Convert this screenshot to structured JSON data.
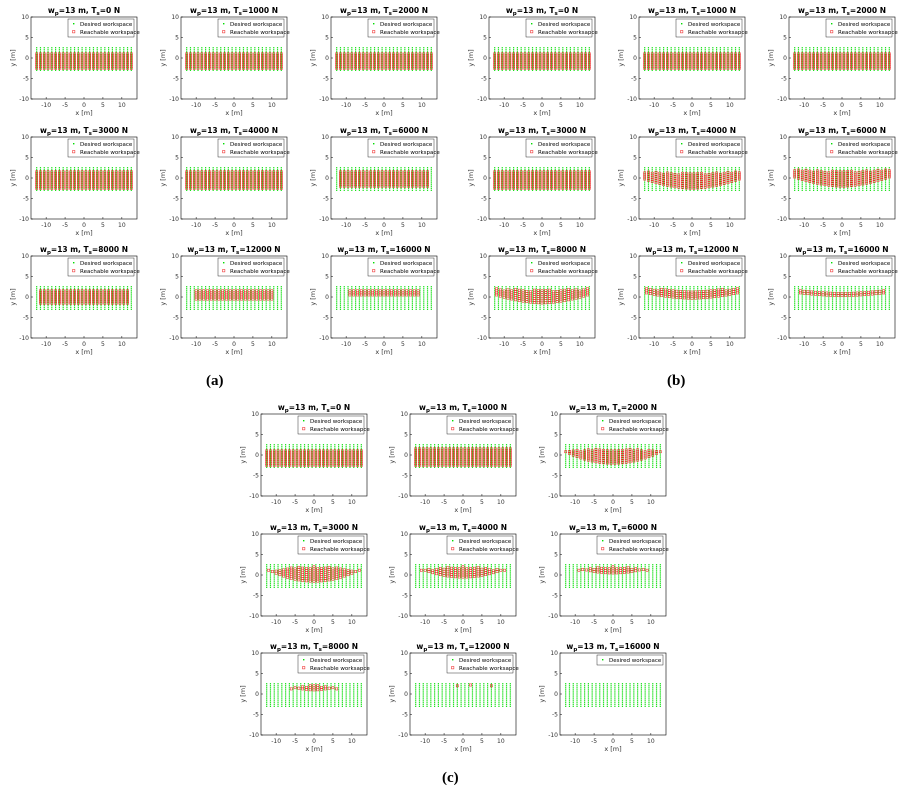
{
  "figure_labels": {
    "a": "(a)",
    "b": "(b)",
    "c": "(c)"
  },
  "legend": {
    "desired": "Desired workspace",
    "reachable": "Reachable workspace",
    "reachable_b": "Reachable worksapce"
  },
  "colors": {
    "desired": "#00dd00",
    "reachable": "#ee1111"
  },
  "axes": {
    "xlabel": "x [m]",
    "ylabel": "y [m]",
    "xlim": [
      -14,
      14
    ],
    "ylim": [
      -10,
      10
    ],
    "xticks": [
      -10,
      -5,
      0,
      5,
      10
    ],
    "yticks": [
      -10,
      -5,
      0,
      5,
      10
    ]
  },
  "chart_data": [
    {
      "type": "scatter",
      "group": "a",
      "title": "w_p=13 m, T_s=0 N",
      "tension": 0,
      "desired": {
        "x": [
          -12.5,
          12.5
        ],
        "y": [
          -3,
          2.5
        ]
      },
      "reachable": {
        "x": [
          -12.5,
          12.5
        ],
        "profile": "flat",
        "ymin": -2.5,
        "ymax": 1
      }
    },
    {
      "type": "scatter",
      "group": "a",
      "title": "w_p=13 m, T_s=1000 N",
      "tension": 1000,
      "desired": {
        "x": [
          -12.5,
          12.5
        ],
        "y": [
          -3,
          2.5
        ]
      },
      "reachable": {
        "x": [
          -12.5,
          12.5
        ],
        "profile": "flat",
        "ymin": -2.5,
        "ymax": 1
      }
    },
    {
      "type": "scatter",
      "group": "a",
      "title": "w_p=13 m, T_s=2000 N",
      "tension": 2000,
      "desired": {
        "x": [
          -12.5,
          12.5
        ],
        "y": [
          -3,
          2.5
        ]
      },
      "reachable": {
        "x": [
          -12.5,
          12.5
        ],
        "profile": "flat",
        "ymin": -2.5,
        "ymax": 1
      }
    },
    {
      "type": "scatter",
      "group": "a",
      "title": "w_p=13 m, T_s=3000 N",
      "tension": 3000,
      "desired": {
        "x": [
          -12.5,
          12.5
        ],
        "y": [
          -3,
          2.5
        ]
      },
      "reachable": {
        "x": [
          -12.5,
          12.5
        ],
        "profile": "flat",
        "ymin": -2.5,
        "ymax": 1.5
      }
    },
    {
      "type": "scatter",
      "group": "a",
      "title": "w_p=13 m, T_s=4000 N",
      "tension": 4000,
      "desired": {
        "x": [
          -12.5,
          12.5
        ],
        "y": [
          -3,
          2.5
        ]
      },
      "reachable": {
        "x": [
          -12.5,
          12.5
        ],
        "profile": "flat",
        "ymin": -2.5,
        "ymax": 1.5
      }
    },
    {
      "type": "scatter",
      "group": "a",
      "title": "w_p=13 m, T_s=6000 N",
      "tension": 6000,
      "desired": {
        "x": [
          -12.5,
          12.5
        ],
        "y": [
          -3,
          2.5
        ]
      },
      "reachable": {
        "x": [
          -11.5,
          11.5
        ],
        "profile": "flat",
        "ymin": -2,
        "ymax": 1.5
      }
    },
    {
      "type": "scatter",
      "group": "a",
      "title": "w_p=13 m, T_s=8000 N",
      "tension": 8000,
      "desired": {
        "x": [
          -12.5,
          12.5
        ],
        "y": [
          -3,
          2.5
        ]
      },
      "reachable": {
        "x": [
          -11.5,
          11.5
        ],
        "profile": "flat",
        "ymin": -1.5,
        "ymax": 1.5
      }
    },
    {
      "type": "scatter",
      "group": "a",
      "title": "w_p=13 m, T_s=12000 N",
      "tension": 12000,
      "desired": {
        "x": [
          -12.5,
          12.5
        ],
        "y": [
          -3,
          2.5
        ]
      },
      "reachable": {
        "x": [
          -10,
          10
        ],
        "profile": "flat",
        "ymin": -0.5,
        "ymax": 1.5
      }
    },
    {
      "type": "scatter",
      "group": "a",
      "title": "w_p=13 m, T_s=16000 N",
      "tension": 16000,
      "desired": {
        "x": [
          -12.5,
          12.5
        ],
        "y": [
          -3,
          2.5
        ]
      },
      "reachable": {
        "x": [
          -9,
          9
        ],
        "profile": "flat",
        "ymin": 0.5,
        "ymax": 1.5
      }
    },
    {
      "type": "scatter",
      "group": "b",
      "title": "w_p=13 m, T_s=0 N",
      "tension": 0,
      "desired": {
        "x": [
          -12.5,
          12.5
        ],
        "y": [
          -3,
          2.5
        ]
      },
      "reachable": {
        "x": [
          -12.5,
          12.5
        ],
        "profile": "flat",
        "ymin": -2.5,
        "ymax": 1
      }
    },
    {
      "type": "scatter",
      "group": "b",
      "title": "w_p=13 m, T_s=1000 N",
      "tension": 1000,
      "desired": {
        "x": [
          -12.5,
          12.5
        ],
        "y": [
          -3,
          2.5
        ]
      },
      "reachable": {
        "x": [
          -12.5,
          12.5
        ],
        "profile": "flat",
        "ymin": -2.5,
        "ymax": 1
      }
    },
    {
      "type": "scatter",
      "group": "b",
      "title": "w_p=13 m, T_s=2000 N",
      "tension": 2000,
      "desired": {
        "x": [
          -12.5,
          12.5
        ],
        "y": [
          -3,
          2.5
        ]
      },
      "reachable": {
        "x": [
          -12.5,
          12.5
        ],
        "profile": "flat",
        "ymin": -2.5,
        "ymax": 1
      }
    },
    {
      "type": "scatter",
      "group": "b",
      "title": "w_p=13 m, T_s=3000 N",
      "tension": 3000,
      "desired": {
        "x": [
          -12.5,
          12.5
        ],
        "y": [
          -3,
          2.5
        ]
      },
      "reachable": {
        "x": [
          -12.5,
          12.5
        ],
        "profile": "flat",
        "ymin": -2.5,
        "ymax": 1.5
      }
    },
    {
      "type": "scatter",
      "group": "b",
      "title": "w_p=13 m, T_s=4000 N",
      "tension": 4000,
      "desired": {
        "x": [
          -12.5,
          12.5
        ],
        "y": [
          -3,
          2.5
        ]
      },
      "reachable": {
        "x": [
          -12.5,
          12.5
        ],
        "profile": "smile",
        "ymin": -2,
        "ymax": 1.5
      }
    },
    {
      "type": "scatter",
      "group": "b",
      "title": "w_p=13 m, T_s=6000 N",
      "tension": 6000,
      "desired": {
        "x": [
          -12.5,
          12.5
        ],
        "y": [
          -3,
          2.5
        ]
      },
      "reachable": {
        "x": [
          -12.5,
          12.5
        ],
        "profile": "smile",
        "ymin": -1.5,
        "ymax": 2
      }
    },
    {
      "type": "scatter",
      "group": "b",
      "title": "w_p=13 m, T_s=8000 N",
      "tension": 8000,
      "desired": {
        "x": [
          -12.5,
          12.5
        ],
        "y": [
          -3,
          2.5
        ]
      },
      "reachable": {
        "x": [
          -12,
          12
        ],
        "profile": "smile",
        "ymin": -1,
        "ymax": 2
      }
    },
    {
      "type": "scatter",
      "group": "b",
      "title": "w_p=13 m, T_s=12000 N",
      "tension": 12000,
      "desired": {
        "x": [
          -12.5,
          12.5
        ],
        "y": [
          -3,
          2.5
        ]
      },
      "reachable": {
        "x": [
          -12,
          12
        ],
        "profile": "smile",
        "ymin": 0,
        "ymax": 2
      }
    },
    {
      "type": "scatter",
      "group": "b",
      "title": "w_p=13 m, T_s=16000 N",
      "tension": 16000,
      "desired": {
        "x": [
          -12.5,
          12.5
        ],
        "y": [
          -3,
          2.5
        ]
      },
      "reachable": {
        "x": [
          -11,
          11
        ],
        "profile": "smile",
        "ymin": 0.5,
        "ymax": 1.5
      }
    },
    {
      "type": "scatter",
      "group": "c",
      "title": "w_p=13 m, T_s=0 N",
      "tension": 0,
      "desired": {
        "x": [
          -12.5,
          12.5
        ],
        "y": [
          -3,
          2.5
        ]
      },
      "reachable": {
        "x": [
          -12.5,
          12.5
        ],
        "profile": "flat",
        "ymin": -2.5,
        "ymax": 1
      }
    },
    {
      "type": "scatter",
      "group": "c",
      "title": "w_p=13 m, T_s=1000 N",
      "tension": 1000,
      "desired": {
        "x": [
          -12.5,
          12.5
        ],
        "y": [
          -3,
          2.5
        ]
      },
      "reachable": {
        "x": [
          -12.5,
          12.5
        ],
        "profile": "flat",
        "ymin": -2.5,
        "ymax": 1.5
      }
    },
    {
      "type": "scatter",
      "group": "c",
      "title": "w_p=13 m, T_s=2000 N",
      "tension": 2000,
      "desired": {
        "x": [
          -12.5,
          12.5
        ],
        "y": [
          -3,
          2.5
        ]
      },
      "reachable": {
        "x": [
          -12.5,
          12.5
        ],
        "profile": "frown",
        "ymin": -2,
        "ymax": 1.5
      }
    },
    {
      "type": "scatter",
      "group": "c",
      "title": "w_p=13 m, T_s=3000 N",
      "tension": 3000,
      "desired": {
        "x": [
          -12.5,
          12.5
        ],
        "y": [
          -3,
          2.5
        ]
      },
      "reachable": {
        "x": [
          -12,
          12
        ],
        "profile": "frown",
        "ymin": -1.5,
        "ymax": 2
      }
    },
    {
      "type": "scatter",
      "group": "c",
      "title": "w_p=13 m, T_s=4000 N",
      "tension": 4000,
      "desired": {
        "x": [
          -12.5,
          12.5
        ],
        "y": [
          -3,
          2.5
        ]
      },
      "reachable": {
        "x": [
          -11,
          11
        ],
        "profile": "frown",
        "ymin": -0.5,
        "ymax": 2
      }
    },
    {
      "type": "scatter",
      "group": "c",
      "title": "w_p=13 m, T_s=6000 N",
      "tension": 6000,
      "desired": {
        "x": [
          -12.5,
          12.5
        ],
        "y": [
          -3,
          2.5
        ]
      },
      "reachable": {
        "x": [
          -9,
          9
        ],
        "profile": "frown",
        "ymin": 0.5,
        "ymax": 2
      }
    },
    {
      "type": "scatter",
      "group": "c",
      "title": "w_p=13 m, T_s=8000 N",
      "tension": 8000,
      "desired": {
        "x": [
          -12.5,
          12.5
        ],
        "y": [
          -3,
          2.5
        ]
      },
      "reachable": {
        "x": [
          -6,
          6
        ],
        "profile": "frown",
        "ymin": 1,
        "ymax": 2.2
      }
    },
    {
      "type": "scatter",
      "group": "c",
      "title": "w_p=13 m, T_s=12000 N",
      "tension": 12000,
      "desired": {
        "x": [
          -12.5,
          12.5
        ],
        "y": [
          -3,
          2.5
        ]
      },
      "reachable": {
        "x": [
          -1.5,
          7.5
        ],
        "points": [
          [
            -1.5,
            2
          ],
          [
            2,
            2.2
          ],
          [
            7.5,
            2
          ]
        ]
      }
    },
    {
      "type": "scatter",
      "group": "c",
      "title": "w_p=13 m, T_s=16000 N",
      "tension": 16000,
      "desired": {
        "x": [
          -12.5,
          12.5
        ],
        "y": [
          -3,
          2.5
        ]
      },
      "reachable": null
    }
  ]
}
